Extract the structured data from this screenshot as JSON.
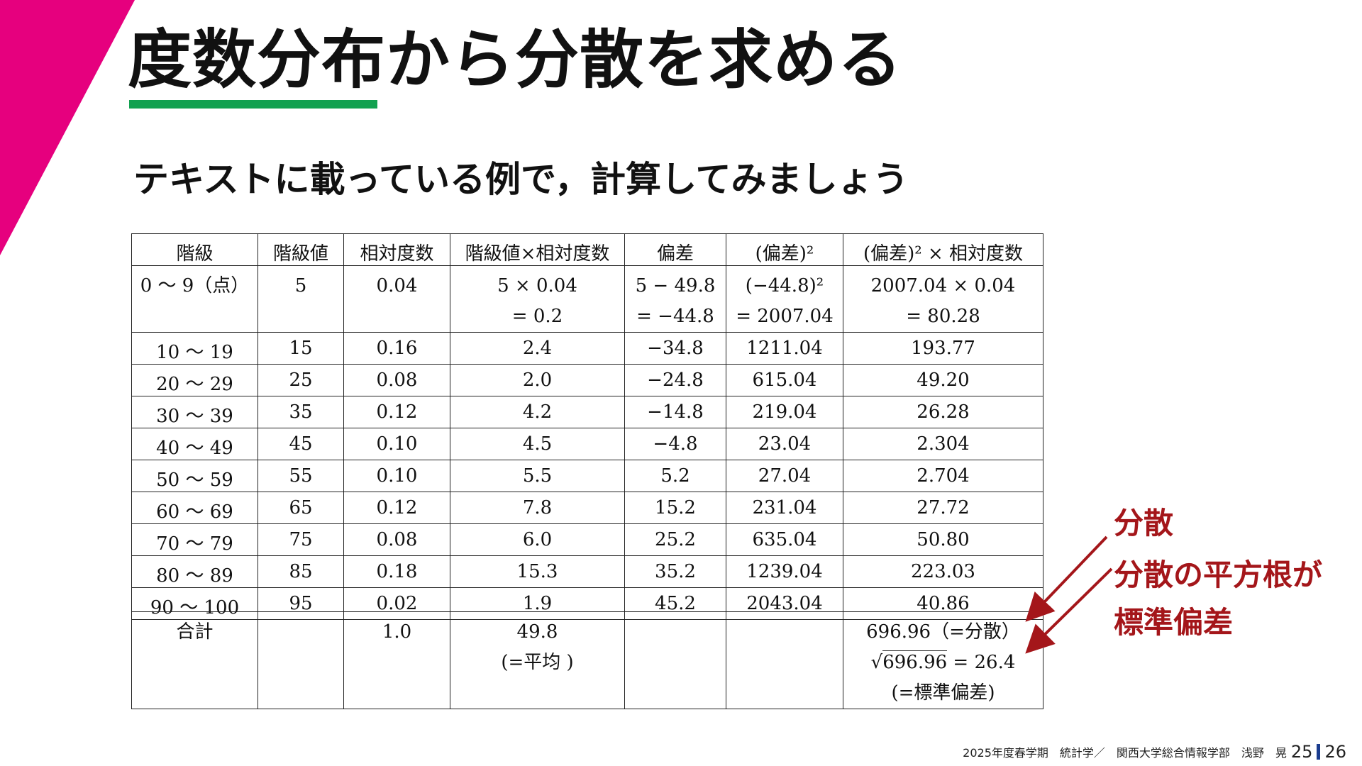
{
  "header": {
    "title": "度数分布から分散を求める",
    "subtitle": "テキストに載っている例で，計算してみましょう"
  },
  "table": {
    "headers": [
      "階級",
      "階級値",
      "相対度数",
      "階級値×相対度数",
      "偏差",
      "(偏差)²",
      "(偏差)² × 相対度数"
    ],
    "first_row": {
      "class": "0 〜 9（点）",
      "value": "5",
      "rel": "0.04",
      "prod_line1": "5 × 0.04",
      "prod_line2": "= 0.2",
      "dev_line1": "5 − 49.8",
      "dev_line2": "= −44.8",
      "sq_line1": "(−44.8)²",
      "sq_line2": "= 2007.04",
      "sqrel_line1": "2007.04 × 0.04",
      "sqrel_line2": "= 80.28"
    },
    "rows": [
      [
        "10 〜 19",
        "15",
        "0.16",
        "2.4",
        "−34.8",
        "1211.04",
        "193.77"
      ],
      [
        "20 〜 29",
        "25",
        "0.08",
        "2.0",
        "−24.8",
        "615.04",
        "49.20"
      ],
      [
        "30 〜 39",
        "35",
        "0.12",
        "4.2",
        "−14.8",
        "219.04",
        "26.28"
      ],
      [
        "40 〜 49",
        "45",
        "0.10",
        "4.5",
        "−4.8",
        "23.04",
        "2.304"
      ],
      [
        "50 〜 59",
        "55",
        "0.10",
        "5.5",
        "5.2",
        "27.04",
        "2.704"
      ],
      [
        "60 〜 69",
        "65",
        "0.12",
        "7.8",
        "15.2",
        "231.04",
        "27.72"
      ],
      [
        "70 〜 79",
        "75",
        "0.08",
        "6.0",
        "25.2",
        "635.04",
        "50.80"
      ],
      [
        "80 〜 89",
        "85",
        "0.18",
        "15.3",
        "35.2",
        "1239.04",
        "223.03"
      ],
      [
        "90 〜 100",
        "95",
        "0.02",
        "1.9",
        "45.2",
        "2043.04",
        "40.86"
      ]
    ],
    "total": {
      "label": "合計",
      "rel": "1.0",
      "mean_value": "49.8",
      "mean_note": "(=平均 )",
      "variance": "696.96（=分散）",
      "sqrt_symbol": "√",
      "sqrt_radicand": "696.96",
      "sqrt_result": " = 26.4",
      "sd_note": "(=標準偏差)"
    }
  },
  "callouts": {
    "variance": "分散",
    "sd_line1": "分散の平方根が",
    "sd_line2": "標準偏差",
    "color": "#a4161a"
  },
  "footer": {
    "course": "2025年度春学期　統計学／　関西大学総合情報学部　浅野　晃",
    "page": "25",
    "total_pages": "26"
  },
  "colors": {
    "accent_corner": "#e6007e",
    "title_underline": "#12a150",
    "callout": "#a4161a"
  }
}
